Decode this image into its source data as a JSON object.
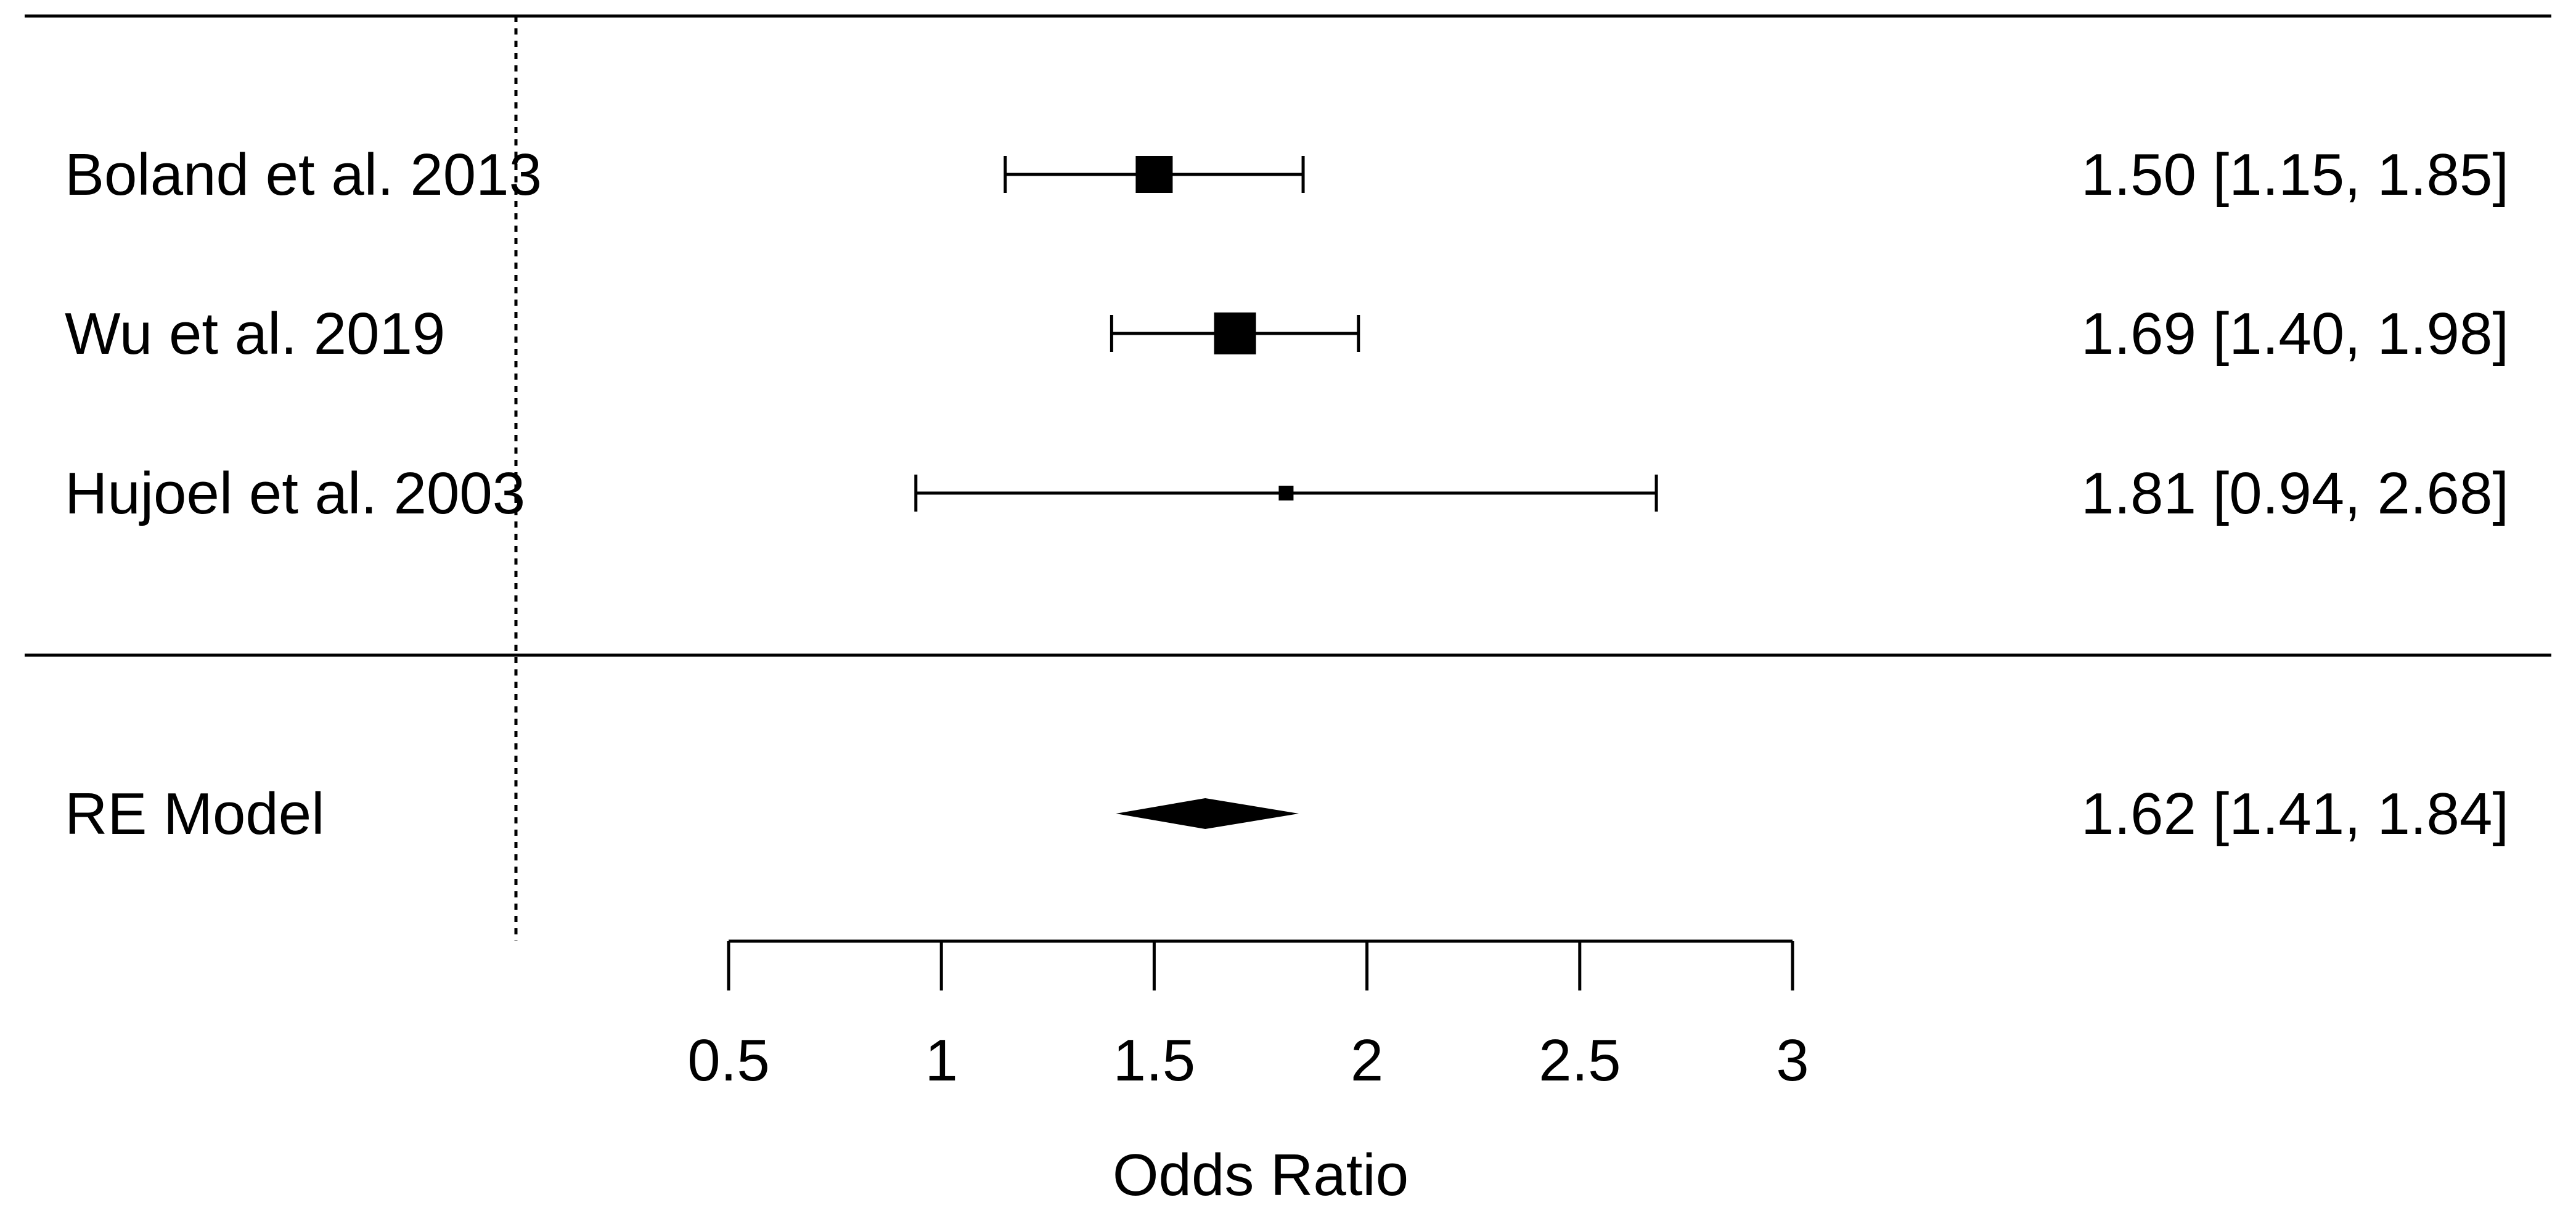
{
  "chart_data": {
    "type": "forest",
    "xlabel": "Odds Ratio",
    "x_ticks": [
      0.5,
      1,
      1.5,
      2,
      2.5,
      3
    ],
    "x_tick_labels": [
      "0.5",
      "1",
      "1.5",
      "2",
      "2.5",
      "3"
    ],
    "xlim": [
      0.5,
      3
    ],
    "reference_line": 0,
    "studies": [
      {
        "label": "Boland et al. 2013",
        "estimate": 1.5,
        "ci_lower": 1.15,
        "ci_upper": 1.85,
        "estimate_text": "1.50 [1.15, 1.85]"
      },
      {
        "label": "Wu et al. 2019",
        "estimate": 1.69,
        "ci_lower": 1.4,
        "ci_upper": 1.98,
        "estimate_text": "1.69 [1.40, 1.98]"
      },
      {
        "label": "Hujoel et al. 2003",
        "estimate": 1.81,
        "ci_lower": 0.94,
        "ci_upper": 2.68,
        "estimate_text": "1.81 [0.94, 2.68]"
      }
    ],
    "summary": {
      "label": "RE Model",
      "estimate": 1.62,
      "ci_lower": 1.41,
      "ci_upper": 1.84,
      "estimate_text": "1.62 [1.41, 1.84]"
    }
  }
}
